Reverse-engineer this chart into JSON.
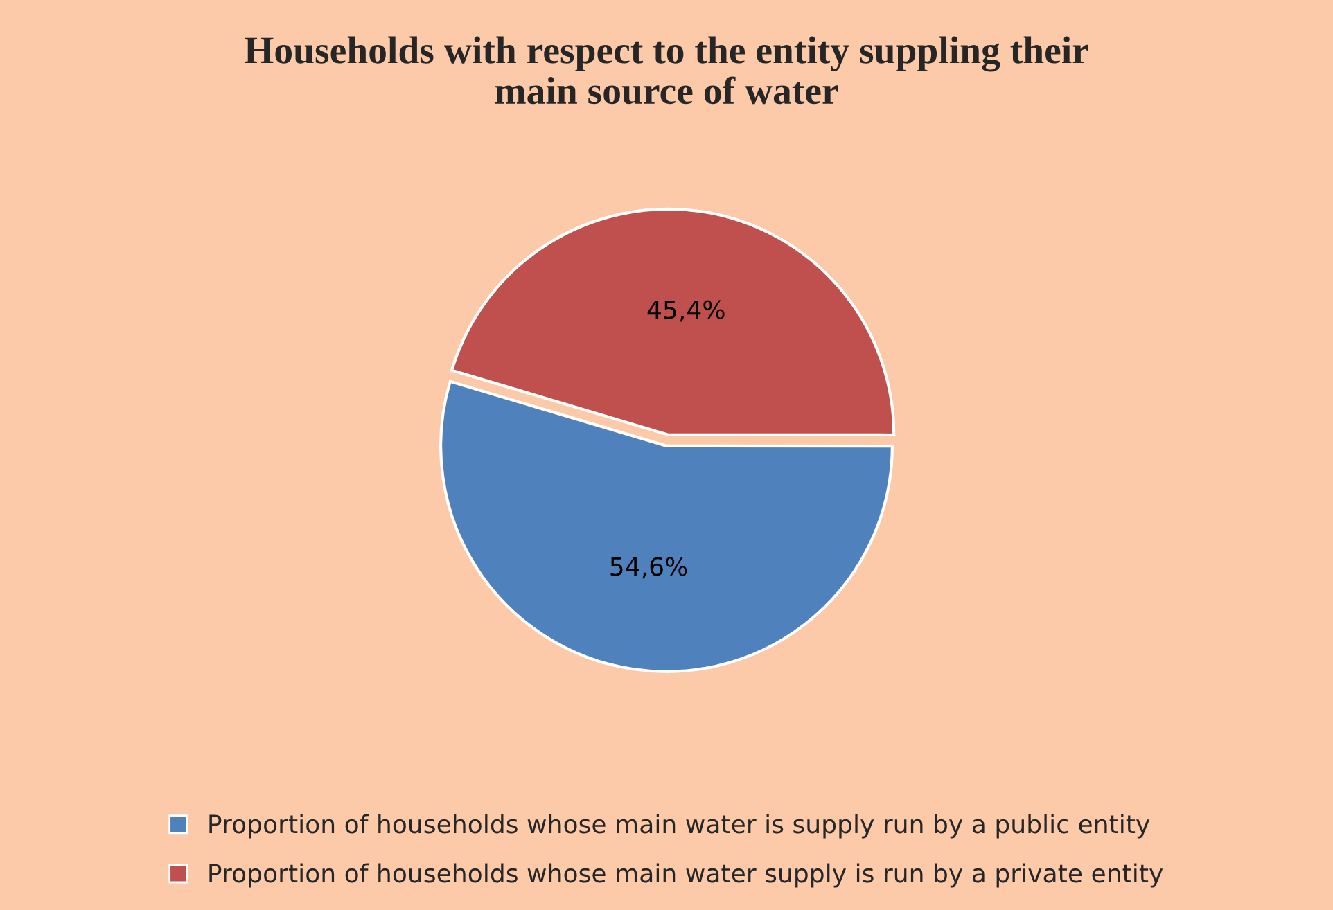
{
  "chart_data": {
    "type": "pie",
    "title": "Households with respect to the entity suppling their\nmain source of water",
    "categories": [
      "Proportion of households whose main water is supply run by a public entity",
      "Proportion of households whose main water supply is run by a private entity"
    ],
    "values": [
      54.6,
      45.4
    ],
    "value_labels": [
      "54,6%",
      "45,4%"
    ],
    "colors": [
      "#4f81bd",
      "#c0504d"
    ],
    "legend": "bottom"
  }
}
